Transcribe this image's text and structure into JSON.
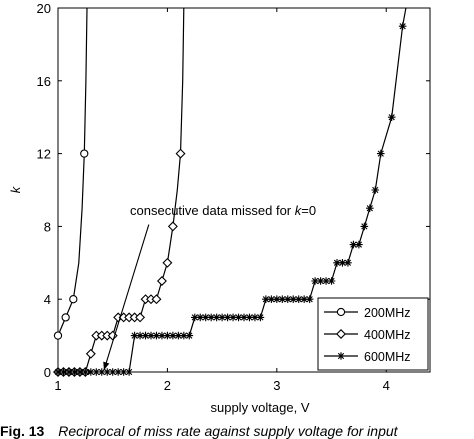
{
  "chart_data": {
    "type": "line",
    "title": "",
    "xlabel": "supply voltage, V",
    "ylabel": "k",
    "xlim": [
      1,
      4.4
    ],
    "ylim": [
      0,
      20
    ],
    "xticks": [
      1,
      2,
      3,
      4
    ],
    "yticks": [
      0,
      4,
      8,
      12,
      16,
      20
    ],
    "grid": false,
    "legend_position": "bottom-right",
    "annotation": {
      "text_prefix": "consecutive data missed for ",
      "text_var": "k",
      "text_suffix": "=0",
      "arrow_from": [
        1.83,
        8.1
      ],
      "arrow_to": [
        1.42,
        0.1
      ]
    },
    "series": [
      {
        "name": "200MHz",
        "marker": "circle",
        "points": [
          [
            1.0,
            2
          ],
          [
            1.07,
            3
          ],
          [
            1.14,
            4
          ],
          [
            1.24,
            12
          ]
        ],
        "curve": [
          [
            1.0,
            2
          ],
          [
            1.07,
            3
          ],
          [
            1.14,
            4
          ],
          [
            1.19,
            6
          ],
          [
            1.22,
            9
          ],
          [
            1.24,
            12
          ],
          [
            1.255,
            16
          ],
          [
            1.265,
            20
          ]
        ]
      },
      {
        "name": "400MHz",
        "marker": "diamond",
        "points": [
          [
            1.0,
            0
          ],
          [
            1.05,
            0
          ],
          [
            1.1,
            0
          ],
          [
            1.15,
            0
          ],
          [
            1.2,
            0
          ],
          [
            1.25,
            0
          ],
          [
            1.3,
            1
          ],
          [
            1.35,
            2
          ],
          [
            1.4,
            2
          ],
          [
            1.45,
            2
          ],
          [
            1.5,
            2
          ],
          [
            1.55,
            3
          ],
          [
            1.6,
            3
          ],
          [
            1.65,
            3
          ],
          [
            1.7,
            3
          ],
          [
            1.75,
            3
          ],
          [
            1.8,
            4
          ],
          [
            1.85,
            4
          ],
          [
            1.9,
            4
          ],
          [
            1.95,
            5
          ],
          [
            2.0,
            6
          ],
          [
            2.05,
            8
          ],
          [
            2.12,
            12
          ]
        ],
        "curve": [
          [
            1.0,
            0
          ],
          [
            1.25,
            0
          ],
          [
            1.3,
            1
          ],
          [
            1.35,
            2
          ],
          [
            1.5,
            2
          ],
          [
            1.55,
            3
          ],
          [
            1.75,
            3
          ],
          [
            1.8,
            4
          ],
          [
            1.9,
            4
          ],
          [
            1.95,
            5
          ],
          [
            2.0,
            6
          ],
          [
            2.05,
            8
          ],
          [
            2.09,
            10
          ],
          [
            2.12,
            12
          ],
          [
            2.14,
            16
          ],
          [
            2.15,
            20
          ]
        ]
      },
      {
        "name": "600MHz",
        "marker": "star",
        "points": [
          [
            1.0,
            0
          ],
          [
            1.05,
            0
          ],
          [
            1.1,
            0
          ],
          [
            1.15,
            0
          ],
          [
            1.2,
            0
          ],
          [
            1.25,
            0
          ],
          [
            1.3,
            0
          ],
          [
            1.35,
            0
          ],
          [
            1.4,
            0
          ],
          [
            1.45,
            0
          ],
          [
            1.5,
            0
          ],
          [
            1.55,
            0
          ],
          [
            1.6,
            0
          ],
          [
            1.65,
            0
          ],
          [
            1.7,
            2
          ],
          [
            1.75,
            2
          ],
          [
            1.8,
            2
          ],
          [
            1.85,
            2
          ],
          [
            1.9,
            2
          ],
          [
            1.95,
            2
          ],
          [
            2.0,
            2
          ],
          [
            2.05,
            2
          ],
          [
            2.1,
            2
          ],
          [
            2.15,
            2
          ],
          [
            2.2,
            2
          ],
          [
            2.25,
            3
          ],
          [
            2.3,
            3
          ],
          [
            2.35,
            3
          ],
          [
            2.4,
            3
          ],
          [
            2.45,
            3
          ],
          [
            2.5,
            3
          ],
          [
            2.55,
            3
          ],
          [
            2.6,
            3
          ],
          [
            2.65,
            3
          ],
          [
            2.7,
            3
          ],
          [
            2.75,
            3
          ],
          [
            2.8,
            3
          ],
          [
            2.85,
            3
          ],
          [
            2.9,
            4
          ],
          [
            2.95,
            4
          ],
          [
            3.0,
            4
          ],
          [
            3.05,
            4
          ],
          [
            3.1,
            4
          ],
          [
            3.15,
            4
          ],
          [
            3.2,
            4
          ],
          [
            3.25,
            4
          ],
          [
            3.3,
            4
          ],
          [
            3.35,
            5
          ],
          [
            3.4,
            5
          ],
          [
            3.45,
            5
          ],
          [
            3.5,
            5
          ],
          [
            3.55,
            6
          ],
          [
            3.6,
            6
          ],
          [
            3.65,
            6
          ],
          [
            3.7,
            7
          ],
          [
            3.75,
            7
          ],
          [
            3.8,
            8
          ],
          [
            3.85,
            9
          ],
          [
            3.9,
            10
          ],
          [
            3.95,
            12
          ],
          [
            4.05,
            14
          ],
          [
            4.15,
            19
          ]
        ],
        "curve": [
          [
            1.0,
            0
          ],
          [
            1.65,
            0
          ],
          [
            1.7,
            2
          ],
          [
            2.2,
            2
          ],
          [
            2.25,
            3
          ],
          [
            2.85,
            3
          ],
          [
            2.9,
            4
          ],
          [
            3.3,
            4
          ],
          [
            3.35,
            5
          ],
          [
            3.5,
            5
          ],
          [
            3.55,
            6
          ],
          [
            3.65,
            6
          ],
          [
            3.7,
            7
          ],
          [
            3.75,
            7
          ],
          [
            3.8,
            8
          ],
          [
            3.85,
            9
          ],
          [
            3.9,
            10
          ],
          [
            3.95,
            12
          ],
          [
            4.05,
            14
          ],
          [
            4.15,
            19
          ],
          [
            4.18,
            20
          ]
        ]
      }
    ]
  },
  "caption": {
    "label": "Fig. 13",
    "text": "Reciprocal of miss rate against supply voltage for input"
  }
}
